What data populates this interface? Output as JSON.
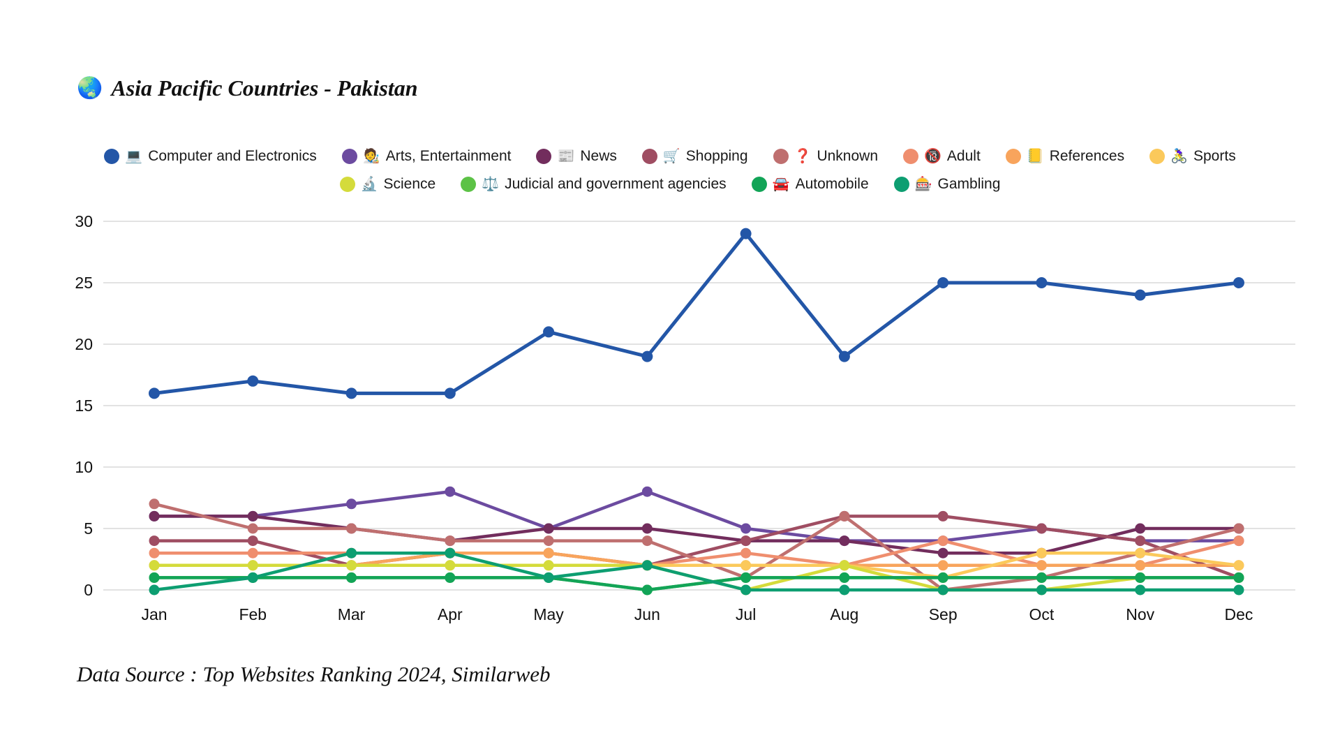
{
  "title": {
    "emoji": "🌏",
    "text": "Asia Pacific Countries - Pakistan"
  },
  "footer": {
    "text": "Data Source : Top Websites Ranking 2024, Similarweb"
  },
  "legend": {
    "row_split": 8
  },
  "chart_data": {
    "type": "line",
    "title": "Asia Pacific Countries - Pakistan",
    "xlabel": "",
    "ylabel": "",
    "categories": [
      "Jan",
      "Feb",
      "Mar",
      "Apr",
      "May",
      "Jun",
      "Jul",
      "Aug",
      "Sep",
      "Oct",
      "Nov",
      "Dec"
    ],
    "y_ticks": [
      0,
      5,
      10,
      15,
      20,
      25,
      30
    ],
    "ylim": [
      0,
      31.5
    ],
    "grid": "horizontal-only",
    "legend_position": "top-center-two-rows",
    "series": [
      {
        "name": "Computer and Electronics",
        "emoji": "💻",
        "color": "#2356A7",
        "values": [
          16,
          17,
          16,
          16,
          21,
          19,
          29,
          19,
          25,
          25,
          24,
          25
        ]
      },
      {
        "name": "Arts, Entertainment",
        "emoji": "🧑‍🎨",
        "color": "#6C4BA0",
        "values": [
          6,
          6,
          7,
          8,
          5,
          8,
          5,
          4,
          4,
          5,
          4,
          4
        ]
      },
      {
        "name": "News",
        "emoji": "📰",
        "color": "#722D5D",
        "values": [
          6,
          6,
          5,
          4,
          5,
          5,
          4,
          4,
          3,
          3,
          5,
          5
        ]
      },
      {
        "name": "Shopping",
        "emoji": "🛒",
        "color": "#9F4D62",
        "values": [
          4,
          4,
          2,
          3,
          3,
          2,
          4,
          6,
          6,
          5,
          4,
          1
        ]
      },
      {
        "name": "Unknown",
        "emoji": "❓",
        "color": "#BF6F6F",
        "values": [
          7,
          5,
          5,
          4,
          4,
          4,
          1,
          6,
          0,
          1,
          3,
          5
        ]
      },
      {
        "name": "Adult",
        "emoji": "🔞",
        "color": "#EF8E6E",
        "values": [
          3,
          3,
          3,
          3,
          3,
          2,
          3,
          2,
          4,
          2,
          2,
          4
        ]
      },
      {
        "name": "References",
        "emoji": "📒",
        "color": "#F8A45C",
        "values": [
          2,
          2,
          2,
          3,
          3,
          2,
          2,
          2,
          2,
          2,
          2,
          2
        ]
      },
      {
        "name": "Sports",
        "emoji": "🚴‍♀️",
        "color": "#FBC95B",
        "values": [
          2,
          2,
          2,
          2,
          2,
          2,
          2,
          2,
          1,
          3,
          3,
          2
        ]
      },
      {
        "name": "Science",
        "emoji": "🔬",
        "color": "#D4DB3B",
        "values": [
          2,
          2,
          2,
          2,
          2,
          2,
          0,
          2,
          0,
          0,
          1,
          1
        ]
      },
      {
        "name": "Judicial and government agencies",
        "emoji": "⚖️",
        "color": "#5CC246",
        "values": [
          1,
          1,
          1,
          1,
          1,
          0,
          1,
          1,
          1,
          1,
          1,
          1
        ]
      },
      {
        "name": "Automobile",
        "emoji": "🚘",
        "color": "#12A457",
        "values": [
          1,
          1,
          1,
          1,
          1,
          0,
          1,
          1,
          1,
          1,
          1,
          1
        ]
      },
      {
        "name": "Gambling",
        "emoji": "🎰",
        "color": "#0D9E71",
        "values": [
          0,
          1,
          3,
          3,
          1,
          2,
          0,
          0,
          0,
          0,
          0,
          0
        ]
      }
    ]
  }
}
